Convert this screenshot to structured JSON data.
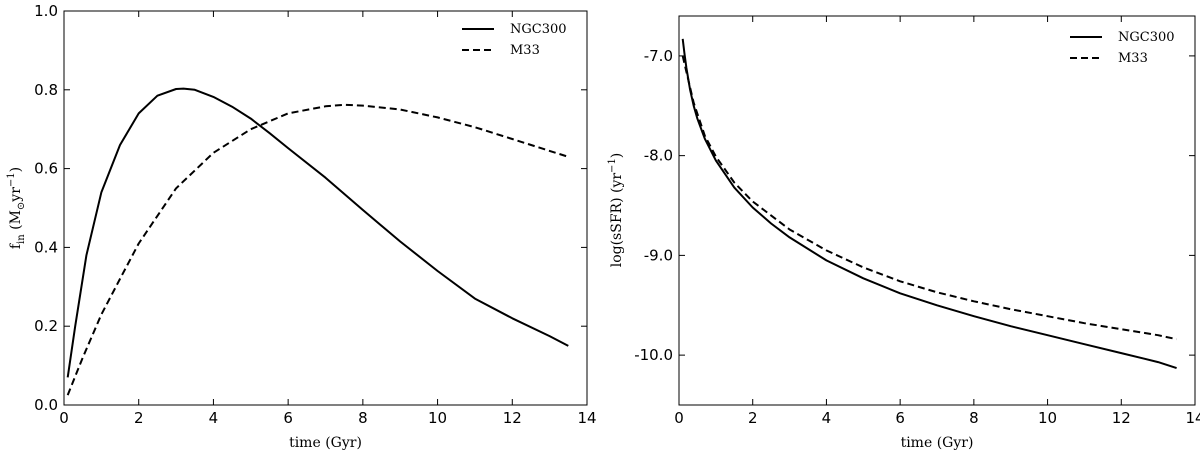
{
  "chart_data": [
    {
      "type": "line",
      "title": "",
      "xlabel": "time (Gyr)",
      "ylabel": "f",
      "ylabel_sub": "in",
      "ylabel_unit_pre": "(M",
      "ylabel_unit_sub": "⊙",
      "ylabel_unit_mid": "yr",
      "ylabel_unit_sup": "−1",
      "ylabel_unit_post": ")",
      "xlim": [
        0,
        14
      ],
      "ylim": [
        0.0,
        1.0
      ],
      "xticks": [
        0,
        2,
        4,
        6,
        8,
        10,
        12,
        14
      ],
      "yticks": [
        0.0,
        0.2,
        0.4,
        0.6,
        0.8,
        1.0
      ],
      "xtick_labels": [
        "0",
        "2",
        "4",
        "6",
        "8",
        "10",
        "12",
        "14"
      ],
      "ytick_labels": [
        "0.0",
        "0.2",
        "0.4",
        "0.6",
        "0.8",
        "1.0"
      ],
      "legend_position": "top-right",
      "series": [
        {
          "name": "NGC300",
          "style": "solid",
          "x": [
            0.1,
            0.3,
            0.6,
            1.0,
            1.5,
            2.0,
            2.5,
            3.0,
            3.2,
            3.5,
            4.0,
            4.5,
            5.0,
            5.5,
            6.0,
            7.0,
            8.0,
            9.0,
            10.0,
            11.0,
            12.0,
            13.0,
            13.5
          ],
          "values": [
            0.07,
            0.2,
            0.38,
            0.54,
            0.66,
            0.74,
            0.785,
            0.802,
            0.803,
            0.8,
            0.782,
            0.757,
            0.727,
            0.69,
            0.652,
            0.577,
            0.495,
            0.415,
            0.34,
            0.27,
            0.22,
            0.175,
            0.15
          ]
        },
        {
          "name": "M33",
          "style": "dashed",
          "x": [
            0.1,
            0.5,
            1.0,
            1.5,
            2.0,
            3.0,
            4.0,
            5.0,
            6.0,
            7.0,
            7.5,
            8.0,
            9.0,
            10.0,
            11.0,
            12.0,
            13.0,
            13.5
          ],
          "values": [
            0.025,
            0.12,
            0.23,
            0.32,
            0.41,
            0.55,
            0.64,
            0.7,
            0.74,
            0.758,
            0.762,
            0.76,
            0.75,
            0.73,
            0.705,
            0.675,
            0.645,
            0.63
          ]
        }
      ]
    },
    {
      "type": "line",
      "title": "",
      "xlabel": "time (Gyr)",
      "ylabel": "log(sSFR)  (yr",
      "ylabel_sup": "−1",
      "ylabel_post": ")",
      "xlim": [
        0,
        14
      ],
      "ylim": [
        -10.5,
        -6.6
      ],
      "xticks": [
        0,
        2,
        4,
        6,
        8,
        10,
        12,
        14
      ],
      "yticks": [
        -7.0,
        -8.0,
        -9.0,
        -10.0
      ],
      "xtick_labels": [
        "0",
        "2",
        "4",
        "6",
        "8",
        "10",
        "12",
        "14"
      ],
      "ytick_labels": [
        "-7.0",
        "-8.0",
        "-9.0",
        "-10.0"
      ],
      "legend_position": "top-right",
      "series": [
        {
          "name": "NGC300",
          "style": "solid",
          "x": [
            0.1,
            0.15,
            0.2,
            0.3,
            0.4,
            0.5,
            0.7,
            1.0,
            1.5,
            2.0,
            2.5,
            3.0,
            4.0,
            5.0,
            6.0,
            7.0,
            8.0,
            9.0,
            10.0,
            11.0,
            12.0,
            13.0,
            13.5
          ],
          "values": [
            -6.83,
            -6.98,
            -7.12,
            -7.34,
            -7.5,
            -7.63,
            -7.83,
            -8.05,
            -8.32,
            -8.52,
            -8.68,
            -8.82,
            -9.05,
            -9.23,
            -9.38,
            -9.5,
            -9.61,
            -9.71,
            -9.8,
            -9.89,
            -9.98,
            -10.07,
            -10.13
          ]
        },
        {
          "name": "M33",
          "style": "dashed",
          "x": [
            0.1,
            0.2,
            0.4,
            0.7,
            1.0,
            1.5,
            2.0,
            3.0,
            4.0,
            5.0,
            6.0,
            7.0,
            8.0,
            9.0,
            10.0,
            11.0,
            12.0,
            13.0,
            13.5
          ],
          "values": [
            -7.0,
            -7.16,
            -7.47,
            -7.8,
            -8.01,
            -8.27,
            -8.46,
            -8.74,
            -8.95,
            -9.12,
            -9.26,
            -9.37,
            -9.46,
            -9.54,
            -9.61,
            -9.68,
            -9.74,
            -9.8,
            -9.84
          ]
        }
      ]
    }
  ]
}
